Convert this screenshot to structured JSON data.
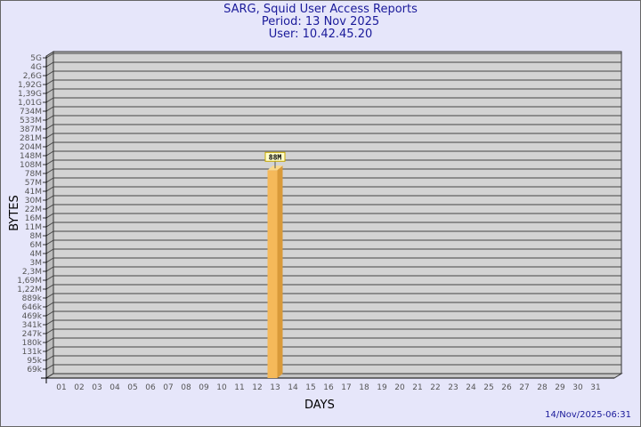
{
  "header": {
    "title": "SARG, Squid User Access Reports",
    "period": "Period: 13 Nov 2025",
    "user": "User: 10.42.45.20"
  },
  "footer": {
    "timestamp": "14/Nov/2025-06:31"
  },
  "chart_data": {
    "type": "bar",
    "xlabel": "DAYS",
    "ylabel": "BYTES",
    "y_scale": "log",
    "grid": true,
    "y_ticks": [
      {
        "label": "5G",
        "value": 5000000000
      },
      {
        "label": "4G",
        "value": 3600000000
      },
      {
        "label": "2,6G",
        "value": 2600000000
      },
      {
        "label": "1,92G",
        "value": 1920000000
      },
      {
        "label": "1,39G",
        "value": 1390000000
      },
      {
        "label": "1,01G",
        "value": 1010000000
      },
      {
        "label": "734M",
        "value": 734000000
      },
      {
        "label": "533M",
        "value": 533000000
      },
      {
        "label": "387M",
        "value": 387000000
      },
      {
        "label": "281M",
        "value": 281000000
      },
      {
        "label": "204M",
        "value": 204000000
      },
      {
        "label": "148M",
        "value": 148000000
      },
      {
        "label": "108M",
        "value": 108000000
      },
      {
        "label": "78M",
        "value": 78000000
      },
      {
        "label": "57M",
        "value": 57000000
      },
      {
        "label": "41M",
        "value": 41000000
      },
      {
        "label": "30M",
        "value": 30000000
      },
      {
        "label": "22M",
        "value": 22000000
      },
      {
        "label": "16M",
        "value": 16000000
      },
      {
        "label": "11M",
        "value": 11000000
      },
      {
        "label": "8M",
        "value": 8000000
      },
      {
        "label": "6M",
        "value": 6000000
      },
      {
        "label": "4M",
        "value": 4000000
      },
      {
        "label": "3M",
        "value": 3000000
      },
      {
        "label": "2,3M",
        "value": 2300000
      },
      {
        "label": "1,69M",
        "value": 1690000
      },
      {
        "label": "1,22M",
        "value": 1220000
      },
      {
        "label": "889k",
        "value": 889000
      },
      {
        "label": "646k",
        "value": 646000
      },
      {
        "label": "469k",
        "value": 469000
      },
      {
        "label": "341k",
        "value": 341000
      },
      {
        "label": "247k",
        "value": 247000
      },
      {
        "label": "180k",
        "value": 180000
      },
      {
        "label": "131k",
        "value": 131000
      },
      {
        "label": "95k",
        "value": 95000
      },
      {
        "label": "69k",
        "value": 69000
      }
    ],
    "categories": [
      "01",
      "02",
      "03",
      "04",
      "05",
      "06",
      "07",
      "08",
      "09",
      "10",
      "11",
      "12",
      "13",
      "14",
      "15",
      "16",
      "17",
      "18",
      "19",
      "20",
      "21",
      "22",
      "23",
      "24",
      "25",
      "26",
      "27",
      "28",
      "29",
      "30",
      "31"
    ],
    "bars": [
      {
        "day": "13",
        "value": 88000000,
        "label": "88M"
      }
    ],
    "colors": {
      "bar": "#f5b95a",
      "bar_side": "#d99a3a",
      "bar_top": "#fbd98a",
      "plot_bg": "#d3d3d3",
      "label_bg": "#ffffcc"
    }
  }
}
